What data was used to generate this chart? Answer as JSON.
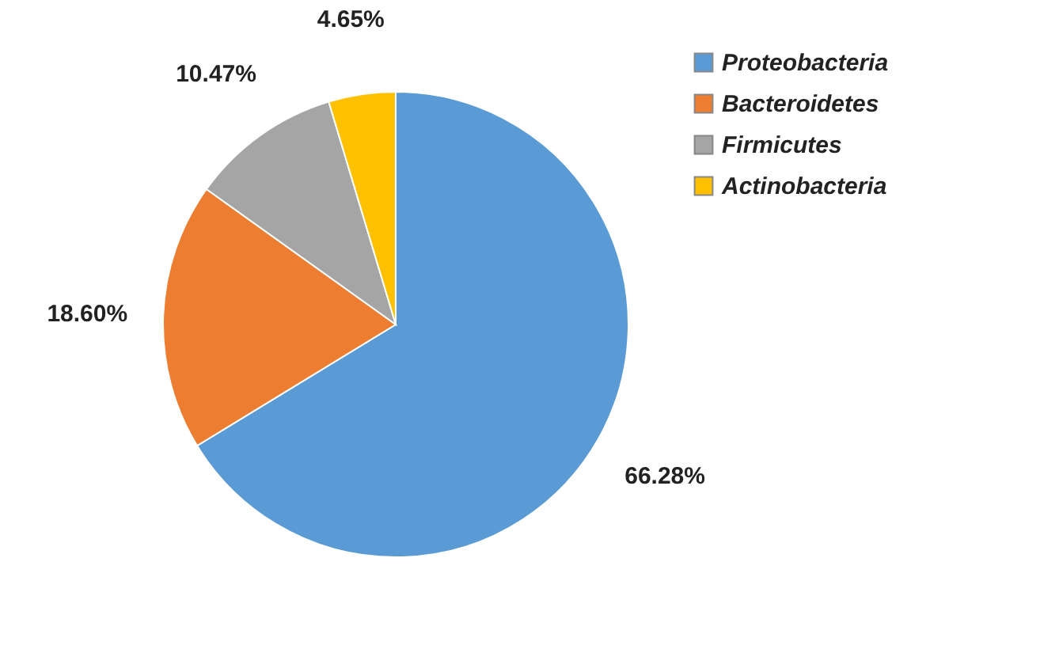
{
  "chart_data": {
    "type": "pie",
    "categories": [
      "Proteobacteria",
      "Bacteroidetes",
      "Firmicutes",
      "Actinobacteria"
    ],
    "values": [
      66.28,
      18.6,
      10.47,
      4.65
    ],
    "value_labels": [
      "66.28%",
      "18.60%",
      "10.47%",
      "4.65%"
    ],
    "colors": [
      "#5b9bd5",
      "#ed7d31",
      "#a5a5a5",
      "#ffc000"
    ],
    "legend": "right"
  }
}
